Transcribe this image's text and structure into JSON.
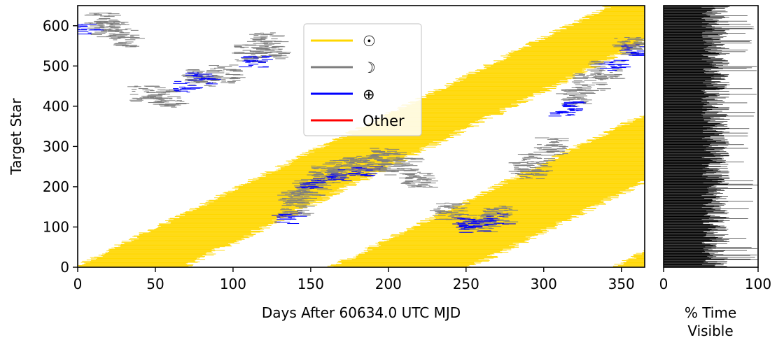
{
  "chart_data": [
    {
      "type": "scatter",
      "description_kind": "visibility-timeline",
      "xlabel": "Days After 60634.0 UTC MJD",
      "ylabel": "Target Star",
      "xlim": [
        0,
        365
      ],
      "ylim": [
        0,
        650
      ],
      "x_ticks": [
        0,
        50,
        100,
        150,
        200,
        250,
        300,
        350
      ],
      "y_ticks": [
        0,
        100,
        200,
        300,
        400,
        500,
        600
      ],
      "grid": false,
      "legend_placement": "upper-center",
      "legend": [
        {
          "label": "☉",
          "color": "#FFD700"
        },
        {
          "label": "☽",
          "color": "#7F7F7F"
        },
        {
          "label": "⊕",
          "color": "#0000FF"
        },
        {
          "label": "Other",
          "color": "#FF0000"
        }
      ],
      "series": [
        {
          "name": "☉",
          "color": "#FFD700",
          "bands": [
            {
              "star_start": 0,
              "star_end": 650,
              "x_start_at_star_start": -2,
              "x_end_at_star_start": 68,
              "slope_days_per_star": 0.53
            },
            {
              "star_start": 0,
              "star_end": 650,
              "x_start_at_star_start": 163,
              "x_end_at_star_start": 253,
              "slope_days_per_star": 0.53
            },
            {
              "star_start": 0,
              "star_end": 650,
              "x_start_at_star_start": 345,
              "x_end_at_star_start": 435,
              "slope_days_per_star": 0.53
            }
          ]
        },
        {
          "name": "☽",
          "color": "#7F7F7F",
          "points": [
            [
              21,
              590
            ],
            [
              15,
              610
            ],
            [
              30,
              570
            ],
            [
              45,
              430
            ],
            [
              60,
              420
            ],
            [
              80,
              470
            ],
            [
              95,
              480
            ],
            [
              110,
              530
            ],
            [
              120,
              560
            ],
            [
              125,
              540
            ],
            [
              140,
              150
            ],
            [
              142,
              180
            ],
            [
              150,
              200
            ],
            [
              160,
              230
            ],
            [
              170,
              245
            ],
            [
              180,
              250
            ],
            [
              190,
              260
            ],
            [
              200,
              275
            ],
            [
              210,
              250
            ],
            [
              220,
              220
            ],
            [
              240,
              140
            ],
            [
              260,
              110
            ],
            [
              270,
              130
            ],
            [
              290,
              240
            ],
            [
              295,
              260
            ],
            [
              305,
              300
            ],
            [
              320,
              420
            ],
            [
              330,
              460
            ],
            [
              340,
              490
            ],
            [
              355,
              550
            ]
          ]
        },
        {
          "name": "⊕",
          "color": "#0000FF",
          "points": [
            [
              5,
              590
            ],
            [
              70,
              450
            ],
            [
              80,
              470
            ],
            [
              115,
              510
            ],
            [
              135,
              120
            ],
            [
              150,
              210
            ],
            [
              170,
              230
            ],
            [
              185,
              240
            ],
            [
              250,
              110
            ],
            [
              255,
              100
            ],
            [
              270,
              120
            ],
            [
              315,
              390
            ],
            [
              320,
              400
            ],
            [
              345,
              500
            ],
            [
              360,
              540
            ]
          ]
        },
        {
          "name": "Other",
          "color": "#FF0000",
          "points": []
        }
      ]
    },
    {
      "type": "bar",
      "orientation": "horizontal",
      "xlabel": "% Time\nVisible",
      "ylabel": "",
      "xlim": [
        0,
        100
      ],
      "ylim": [
        0,
        650
      ],
      "x_ticks": [
        0,
        100
      ],
      "bar_color": "#000000",
      "mean_percent_visible": 55,
      "range_percent_visible": [
        33,
        100
      ]
    }
  ],
  "labels": {
    "ylabel": "Target Star",
    "xlabel": "Days After 60634.0 UTC MJD",
    "side_xlabel_line1": "% Time",
    "side_xlabel_line2": "Visible"
  }
}
